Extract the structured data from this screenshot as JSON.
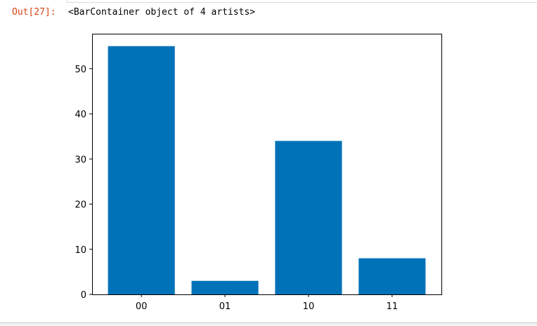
{
  "cell": {
    "prompt": "Out[27]:",
    "output_text": "<BarContainer object of 4 artists>"
  },
  "chart_data": {
    "type": "bar",
    "categories": [
      "00",
      "01",
      "10",
      "11"
    ],
    "values": [
      55,
      3,
      34,
      8
    ],
    "ylim": [
      0,
      57.75
    ],
    "yticks": [
      0,
      10,
      20,
      30,
      40,
      50
    ],
    "bar_color": "#0072b8",
    "grid": false,
    "title": "",
    "xlabel": "",
    "ylabel": ""
  }
}
